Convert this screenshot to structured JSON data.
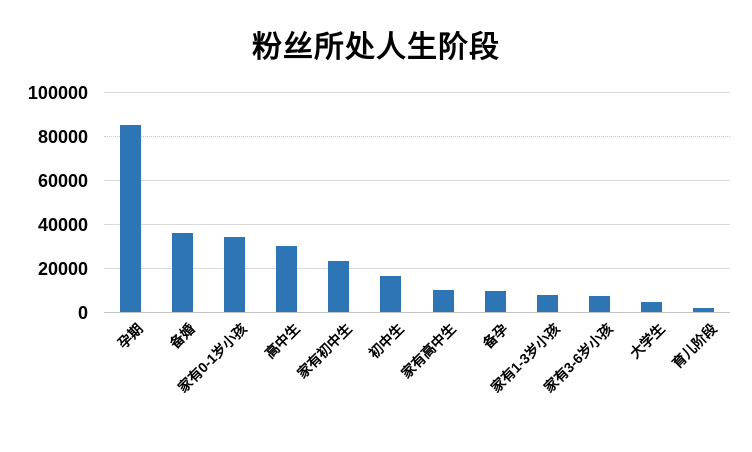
{
  "chart_data": {
    "type": "bar",
    "title": "粉丝所处人生阶段",
    "categories": [
      "孕期",
      "备婚",
      "家有0-1岁小孩",
      "高中生",
      "家有初中生",
      "初中生",
      "家有高中生",
      "备孕",
      "家有1-3岁小孩",
      "家有3-6岁小孩",
      "大学生",
      "育儿阶段"
    ],
    "values": [
      84800,
      35800,
      34200,
      30100,
      23400,
      16500,
      10000,
      9500,
      7800,
      7400,
      4500,
      1600
    ],
    "xlabel": "",
    "ylabel": "",
    "ylim": [
      0,
      100000
    ],
    "yticks": [
      0,
      20000,
      40000,
      60000,
      80000,
      100000
    ],
    "ytick_labels": [
      "0",
      "20000",
      "40000",
      "60000",
      "80000",
      "100000"
    ],
    "grid": true,
    "legend": false,
    "x_label_rotation_deg": 45,
    "bar_color": "#2E75B6",
    "gridline_color": "#D9D9D9",
    "dotted_gridline_value": 80000,
    "text_color": "#000000",
    "background_color": "#FFFFFF"
  }
}
